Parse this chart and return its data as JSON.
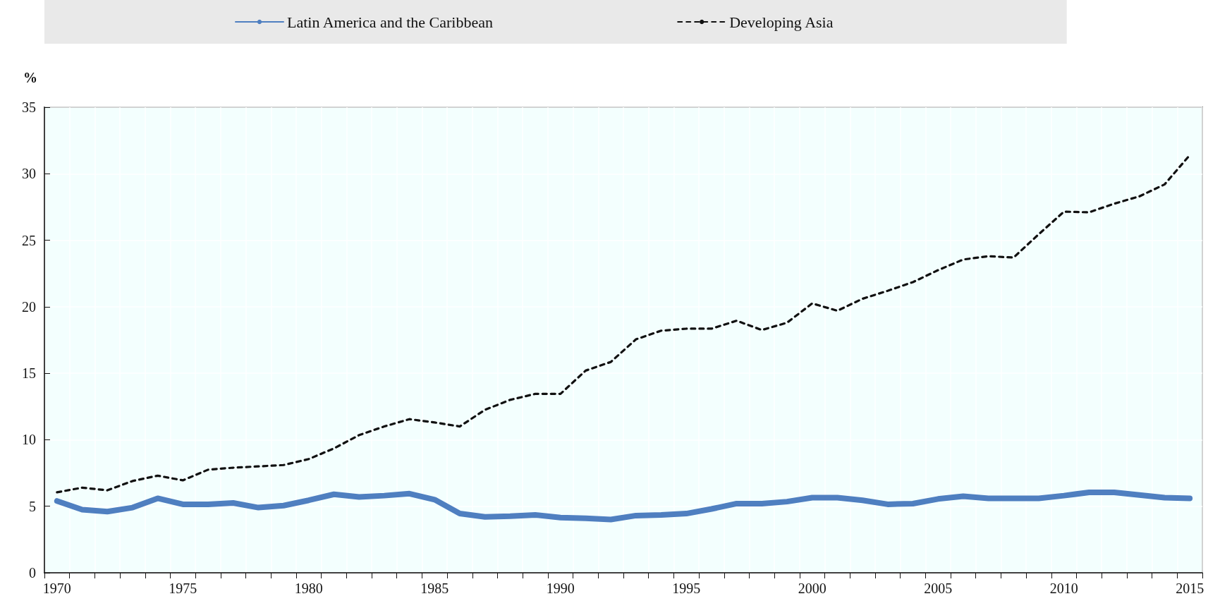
{
  "chart_data": {
    "type": "line",
    "ylabel": "%",
    "categories": [
      "1970",
      null,
      null,
      null,
      null,
      "1975",
      null,
      null,
      null,
      null,
      "1980",
      null,
      null,
      null,
      null,
      "1985",
      null,
      null,
      null,
      null,
      "1990",
      null,
      null,
      null,
      null,
      "1995",
      null,
      null,
      null,
      null,
      "2000",
      null,
      null,
      null,
      null,
      "2005",
      null,
      null,
      null,
      null,
      "2010",
      null,
      null,
      null,
      null,
      "2015"
    ],
    "series": [
      {
        "name": "Latin America and the Caribbean",
        "color": "#4f7fc0",
        "line_style": "solid",
        "values": [
          5.4,
          4.75,
          4.6,
          4.9,
          5.6,
          5.15,
          5.15,
          5.25,
          4.9,
          5.05,
          5.45,
          5.9,
          5.7,
          5.8,
          5.95,
          5.5,
          4.45,
          4.2,
          4.25,
          4.35,
          4.15,
          4.1,
          4.0,
          4.3,
          4.35,
          4.45,
          4.8,
          5.2,
          5.2,
          5.35,
          5.65,
          5.65,
          5.45,
          5.15,
          5.2,
          5.55,
          5.75,
          5.6,
          5.6,
          5.6,
          5.8,
          6.05,
          6.05,
          5.85,
          5.65,
          5.6
        ]
      },
      {
        "name": "Developing Asia",
        "color": "#111111",
        "line_style": "dashed",
        "values": [
          6.05,
          6.4,
          6.2,
          6.9,
          7.3,
          6.95,
          7.75,
          7.9,
          8.0,
          8.1,
          8.55,
          9.35,
          10.35,
          11.0,
          11.55,
          11.3,
          11.0,
          12.25,
          13.0,
          13.45,
          13.45,
          15.2,
          15.85,
          17.55,
          18.2,
          18.35,
          18.35,
          18.95,
          18.25,
          18.8,
          20.25,
          19.7,
          20.6,
          21.2,
          21.85,
          22.75,
          23.55,
          23.8,
          23.7,
          25.45,
          27.15,
          27.1,
          27.75,
          28.3,
          29.2,
          31.4
        ]
      }
    ],
    "ylim": [
      0,
      35
    ],
    "yticks": [
      0,
      5,
      10,
      15,
      20,
      25,
      30,
      35
    ],
    "grid": true,
    "legend": "top",
    "marker": "none"
  }
}
